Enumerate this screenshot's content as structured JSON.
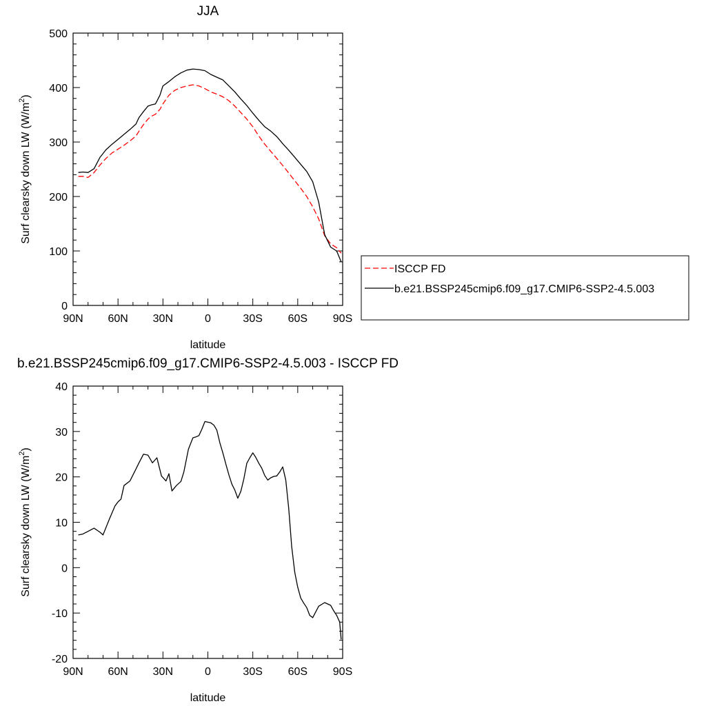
{
  "chart_data": [
    {
      "type": "line",
      "title": "JJA",
      "xlabel": "latitude",
      "ylabel": "Surf clearsky down LW (W/m",
      "ylabel_sup": "2",
      "ylabel_close": ")",
      "xlim": [
        90,
        -90
      ],
      "ylim": [
        0,
        500
      ],
      "xticks": [
        90,
        60,
        30,
        0,
        -30,
        -60,
        -90
      ],
      "xtick_labels": [
        "90N",
        "60N",
        "30N",
        "0",
        "30S",
        "60S",
        "90S"
      ],
      "yticks": [
        0,
        100,
        200,
        300,
        400,
        500
      ],
      "ytick_labels": [
        "0",
        "100",
        "200",
        "300",
        "400",
        "500"
      ],
      "grid": false,
      "legend_position": "right",
      "series": [
        {
          "name": "ISCCP FD",
          "color": "#ff0000",
          "dash": "dashed",
          "x": [
            86.5,
            83.5,
            80,
            76,
            72,
            68,
            64,
            60,
            56,
            52,
            48,
            46,
            43,
            40,
            38,
            35,
            32,
            30,
            26,
            22,
            18,
            14,
            10,
            6,
            2,
            -2,
            -6,
            -10,
            -14,
            -18,
            -22,
            -26,
            -30,
            -34,
            -38,
            -42,
            -46,
            -50,
            -54,
            -58,
            -62,
            -66,
            -70,
            -74,
            -78,
            -82,
            -86,
            -89
          ],
          "y": [
            237,
            237,
            235,
            244,
            258,
            270,
            280,
            287,
            294,
            302,
            311,
            320,
            332,
            342,
            347,
            351,
            360,
            370,
            386,
            395,
            400,
            403,
            405,
            403,
            398,
            392,
            388,
            383,
            376,
            366,
            354,
            342,
            328,
            311,
            296,
            283,
            270,
            257,
            243,
            229,
            215,
            200,
            181,
            159,
            128,
            113,
            106,
            96
          ]
        },
        {
          "name": "b.e21.BSSP245cmip6.f09_g17.CMIP6-SSP2-4.5.003",
          "color": "#000000",
          "dash": "solid",
          "x": [
            86.5,
            83.5,
            80,
            76,
            72,
            68,
            64,
            60,
            56,
            52,
            48,
            46,
            43,
            40,
            38,
            35,
            32,
            30,
            26,
            22,
            18,
            14,
            10,
            6,
            2,
            -2,
            -6,
            -10,
            -14,
            -18,
            -22,
            -26,
            -30,
            -34,
            -38,
            -42,
            -46,
            -50,
            -54,
            -58,
            -62,
            -66,
            -70,
            -74,
            -78,
            -82,
            -86,
            -89
          ],
          "y": [
            244,
            245,
            244,
            251,
            272,
            286,
            296,
            305,
            314,
            323,
            333,
            345,
            356,
            366,
            368,
            370,
            386,
            403,
            411,
            420,
            427,
            432,
            434,
            433,
            431,
            424,
            419,
            414,
            403,
            392,
            379,
            367,
            353,
            340,
            328,
            320,
            310,
            297,
            285,
            272,
            259,
            246,
            227,
            190,
            130,
            107,
            100,
            80
          ]
        }
      ]
    },
    {
      "type": "line",
      "title": "b.e21.BSSP245cmip6.f09_g17.CMIP6-SSP2-4.5.003 - ISCCP FD",
      "xlabel": "latitude",
      "ylabel": "Surf clearsky down LW (W/m",
      "ylabel_sup": "2",
      "ylabel_close": ")",
      "xlim": [
        90,
        -90
      ],
      "ylim": [
        -20,
        40
      ],
      "xticks": [
        90,
        60,
        30,
        0,
        -30,
        -60,
        -90
      ],
      "xtick_labels": [
        "90N",
        "60N",
        "30N",
        "0",
        "30S",
        "60S",
        "90S"
      ],
      "yticks": [
        -20,
        -10,
        0,
        10,
        20,
        30,
        40
      ],
      "ytick_labels": [
        "-20",
        "-10",
        "0",
        "10",
        "20",
        "30",
        "40"
      ],
      "grid": false,
      "series": [
        {
          "color": "#000000",
          "dash": "solid",
          "x": [
            86.5,
            83.5,
            80,
            76,
            72,
            70,
            66,
            62,
            60,
            58,
            56,
            52,
            49,
            46,
            43,
            40,
            37,
            34,
            31,
            28,
            26,
            24,
            21,
            18,
            16,
            13,
            10,
            8,
            6,
            4,
            2,
            -2,
            -4,
            -6,
            -8,
            -10,
            -12,
            -14,
            -16,
            -18,
            -20,
            -22,
            -24,
            -26,
            -28,
            -30,
            -32,
            -34,
            -36,
            -38,
            -40,
            -42,
            -44,
            -46,
            -48,
            -50,
            -52,
            -54,
            -56,
            -58,
            -60,
            -62,
            -64,
            -66,
            -68,
            -70,
            -74,
            -78,
            -82,
            -84,
            -86,
            -88,
            -89
          ],
          "y": [
            7.2,
            7.4,
            8.0,
            8.7,
            7.8,
            7.2,
            10.5,
            13.6,
            14.5,
            15.1,
            18.1,
            19.1,
            21.1,
            23.1,
            25.0,
            24.8,
            23.1,
            24.2,
            20.2,
            19.1,
            20.7,
            16.9,
            18.1,
            19.0,
            21.1,
            26.1,
            28.6,
            28.8,
            29.1,
            30.5,
            32.2,
            31.9,
            31.4,
            30.3,
            27.5,
            25.3,
            22.8,
            20.5,
            18.4,
            17.1,
            15.3,
            16.8,
            19.5,
            23.0,
            24.2,
            25.3,
            24.3,
            23.0,
            21.9,
            20.3,
            19.3,
            19.8,
            20.1,
            20.2,
            21.1,
            22.2,
            19.3,
            13.0,
            4.6,
            -1.0,
            -4.3,
            -6.7,
            -7.8,
            -8.8,
            -10.5,
            -11.0,
            -8.5,
            -7.7,
            -8.3,
            -9.5,
            -10.5,
            -12.0,
            -15.8
          ]
        }
      ]
    }
  ]
}
